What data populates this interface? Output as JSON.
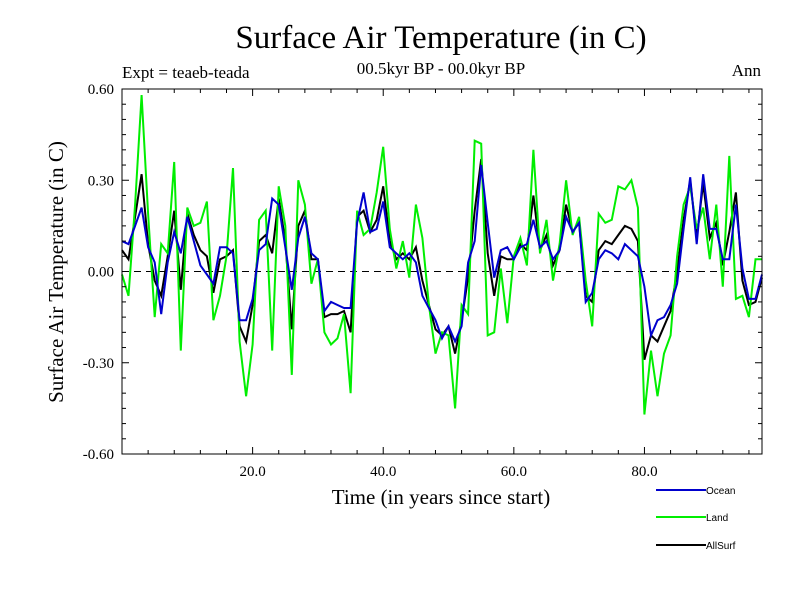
{
  "chart_data": {
    "type": "line",
    "title": "Surface Air Temperature (in C)",
    "subtitle": "00.5kyr BP - 00.0kyr BP",
    "left_label": "Expt = teaeb-teada",
    "right_label": "Ann",
    "xlabel": "Time (in years since start)",
    "ylabel": "Surface Air Temperature (in C)",
    "xlim": [
      0,
      98
    ],
    "ylim": [
      -0.6,
      0.6
    ],
    "xticks": [
      20,
      40,
      60,
      80
    ],
    "xtick_labels": [
      "20.0",
      "40.0",
      "60.0",
      "80.0"
    ],
    "yticks": [
      -0.6,
      -0.3,
      0.0,
      0.3,
      0.6
    ],
    "ytick_labels": [
      "-0.60",
      "-0.30",
      "0.00",
      "0.30",
      "0.60"
    ],
    "reference_line": 0.0,
    "legend_position": "bottom-right",
    "x": [
      0,
      1,
      2,
      3,
      4,
      5,
      6,
      7,
      8,
      9,
      10,
      11,
      12,
      13,
      14,
      15,
      16,
      17,
      18,
      19,
      20,
      21,
      22,
      23,
      24,
      25,
      26,
      27,
      28,
      29,
      30,
      31,
      32,
      33,
      34,
      35,
      36,
      37,
      38,
      39,
      40,
      41,
      42,
      43,
      44,
      45,
      46,
      47,
      48,
      49,
      50,
      51,
      52,
      53,
      54,
      55,
      56,
      57,
      58,
      59,
      60,
      61,
      62,
      63,
      64,
      65,
      66,
      67,
      68,
      69,
      70,
      71,
      72,
      73,
      74,
      75,
      76,
      77,
      78,
      79,
      80,
      81,
      82,
      83,
      84,
      85,
      86,
      87,
      88,
      89,
      90,
      91,
      92,
      93,
      94,
      95,
      96,
      97,
      98
    ],
    "series": [
      {
        "name": "Ocean",
        "color": "#0000cd",
        "values": [
          0.1,
          0.09,
          0.15,
          0.21,
          0.08,
          0.03,
          -0.14,
          0.03,
          0.13,
          0.06,
          0.18,
          0.1,
          0.02,
          -0.01,
          -0.04,
          0.08,
          0.08,
          0.06,
          -0.16,
          -0.16,
          -0.09,
          0.07,
          0.09,
          0.24,
          0.22,
          0.08,
          -0.06,
          0.11,
          0.18,
          0.06,
          0.04,
          -0.13,
          -0.1,
          -0.11,
          -0.12,
          -0.12,
          0.16,
          0.26,
          0.13,
          0.14,
          0.23,
          0.08,
          0.06,
          0.04,
          0.06,
          0.03,
          -0.08,
          -0.12,
          -0.16,
          -0.22,
          -0.18,
          -0.23,
          -0.18,
          0.03,
          0.1,
          0.35,
          0.16,
          -0.02,
          0.07,
          0.08,
          0.04,
          0.08,
          0.09,
          0.17,
          0.08,
          0.1,
          0.04,
          0.07,
          0.18,
          0.13,
          0.16,
          -0.1,
          -0.07,
          0.04,
          0.07,
          0.06,
          0.04,
          0.09,
          0.07,
          0.05,
          -0.05,
          -0.21,
          -0.16,
          -0.15,
          -0.11,
          -0.04,
          0.14,
          0.31,
          0.09,
          0.32,
          0.14,
          0.14,
          0.04,
          0.04,
          0.22,
          0.01,
          -0.09,
          -0.09,
          -0.01
        ]
      },
      {
        "name": "Land",
        "color": "#00ee00",
        "values": [
          -0.01,
          -0.08,
          0.22,
          0.58,
          0.19,
          -0.15,
          0.09,
          0.06,
          0.36,
          -0.26,
          0.21,
          0.15,
          0.16,
          0.23,
          -0.16,
          -0.08,
          0.05,
          0.34,
          -0.23,
          -0.41,
          -0.24,
          0.17,
          0.2,
          -0.26,
          0.28,
          0.15,
          -0.34,
          0.3,
          0.22,
          -0.04,
          0.04,
          -0.2,
          -0.24,
          -0.22,
          -0.14,
          -0.4,
          0.2,
          0.12,
          0.14,
          0.26,
          0.41,
          0.14,
          0.01,
          0.1,
          -0.02,
          0.22,
          0.11,
          -0.11,
          -0.27,
          -0.2,
          -0.21,
          -0.45,
          -0.11,
          -0.14,
          0.43,
          0.42,
          -0.21,
          -0.2,
          0.01,
          -0.17,
          0.05,
          0.11,
          0.02,
          0.4,
          0.06,
          0.17,
          -0.03,
          0.09,
          0.3,
          0.12,
          0.18,
          -0.03,
          -0.18,
          0.19,
          0.16,
          0.17,
          0.28,
          0.27,
          0.3,
          0.21,
          -0.47,
          -0.26,
          -0.41,
          -0.27,
          -0.21,
          0.05,
          0.22,
          0.28,
          0.14,
          0.21,
          0.04,
          0.22,
          -0.05,
          0.38,
          -0.09,
          -0.08,
          -0.15,
          0.04,
          0.04
        ]
      },
      {
        "name": "AllSurf",
        "color": "#000000",
        "values": [
          0.07,
          0.04,
          0.18,
          0.32,
          0.09,
          -0.03,
          -0.08,
          0.05,
          0.2,
          -0.06,
          0.19,
          0.12,
          0.07,
          0.05,
          -0.07,
          0.04,
          0.05,
          0.07,
          -0.18,
          -0.23,
          -0.11,
          0.1,
          0.12,
          0.06,
          0.24,
          0.1,
          -0.19,
          0.15,
          0.2,
          0.04,
          0.04,
          -0.15,
          -0.14,
          -0.14,
          -0.13,
          -0.2,
          0.18,
          0.2,
          0.13,
          0.17,
          0.28,
          0.1,
          0.04,
          0.06,
          0.04,
          0.08,
          -0.03,
          -0.11,
          -0.19,
          -0.21,
          -0.18,
          -0.27,
          -0.16,
          -0.02,
          0.2,
          0.37,
          0.06,
          -0.08,
          0.05,
          0.04,
          0.04,
          0.09,
          0.07,
          0.25,
          0.07,
          0.12,
          0.02,
          0.07,
          0.22,
          0.13,
          0.16,
          -0.08,
          -0.1,
          0.07,
          0.1,
          0.09,
          0.12,
          0.15,
          0.14,
          0.1,
          -0.29,
          -0.21,
          -0.23,
          -0.18,
          -0.13,
          0.0,
          0.17,
          0.3,
          0.11,
          0.29,
          0.11,
          0.16,
          0.02,
          0.13,
          0.26,
          -0.03,
          -0.11,
          -0.1,
          -0.02
        ]
      }
    ]
  }
}
